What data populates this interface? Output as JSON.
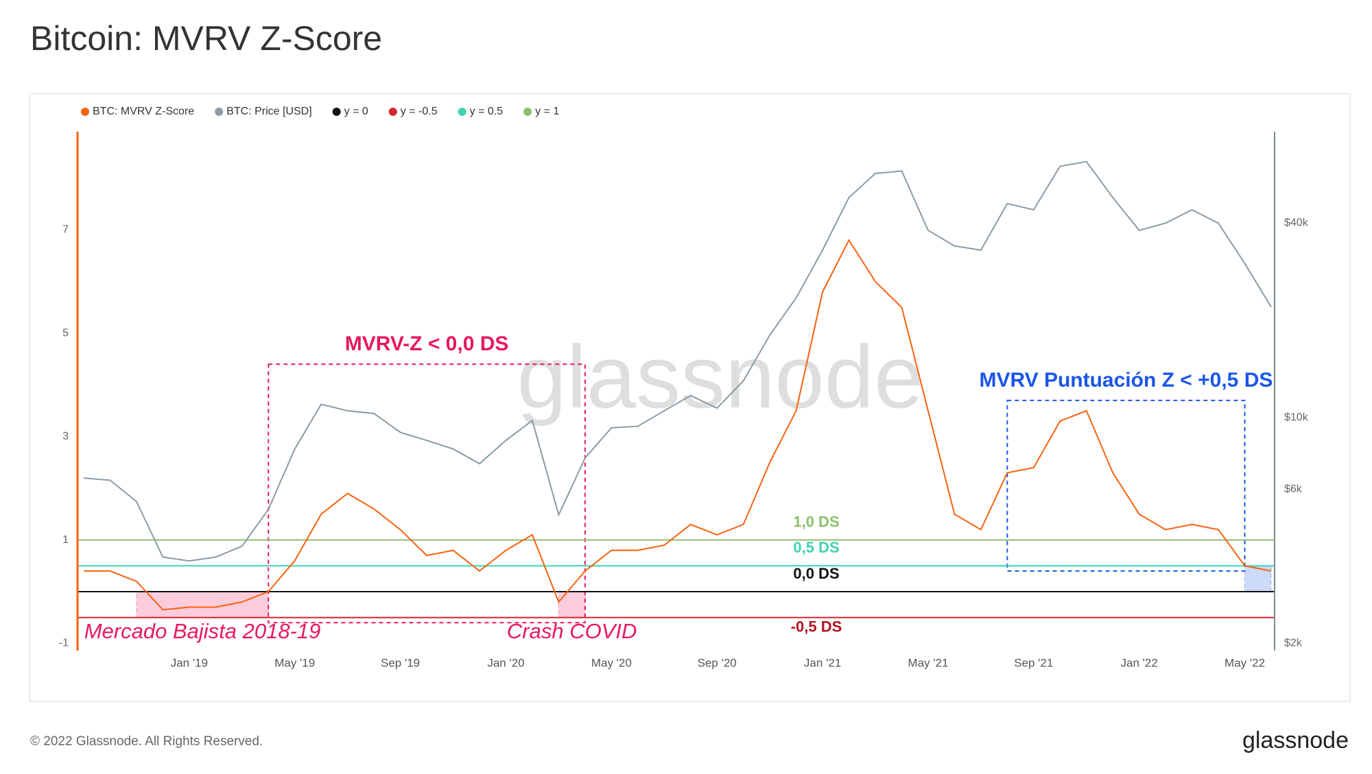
{
  "chart_data": {
    "type": "line",
    "title": "Bitcoin: MVRV Z-Score",
    "x": [
      "2018-09",
      "2018-10",
      "2018-11",
      "2018-12",
      "2019-01",
      "2019-02",
      "2019-03",
      "2019-04",
      "2019-05",
      "2019-06",
      "2019-07",
      "2019-08",
      "2019-09",
      "2019-10",
      "2019-11",
      "2019-12",
      "2020-01",
      "2020-02",
      "2020-03",
      "2020-04",
      "2020-05",
      "2020-06",
      "2020-07",
      "2020-08",
      "2020-09",
      "2020-10",
      "2020-11",
      "2020-12",
      "2021-01",
      "2021-02",
      "2021-03",
      "2021-04",
      "2021-05",
      "2021-06",
      "2021-07",
      "2021-08",
      "2021-09",
      "2021-10",
      "2021-11",
      "2021-12",
      "2022-01",
      "2022-02",
      "2022-03",
      "2022-04",
      "2022-05",
      "2022-06"
    ],
    "series": [
      {
        "name": "BTC: MVRV Z-Score",
        "color": "#f7620e",
        "values": [
          0.4,
          0.4,
          0.2,
          -0.35,
          -0.3,
          -0.3,
          -0.2,
          0.0,
          0.6,
          1.5,
          1.9,
          1.6,
          1.2,
          0.7,
          0.8,
          0.4,
          0.8,
          1.1,
          -0.2,
          0.4,
          0.8,
          0.8,
          0.9,
          1.3,
          1.1,
          1.3,
          2.5,
          3.5,
          5.8,
          6.8,
          6.0,
          5.5,
          3.5,
          1.5,
          1.2,
          2.3,
          2.4,
          3.3,
          3.5,
          2.3,
          1.5,
          1.2,
          1.3,
          1.2,
          0.5,
          0.4
        ]
      },
      {
        "name": "BTC: Price [USD]",
        "color": "#8a9ba3",
        "axis": "y2",
        "values": [
          6500,
          6400,
          5500,
          3700,
          3600,
          3700,
          4000,
          5200,
          8000,
          11000,
          10500,
          10300,
          9000,
          8500,
          8000,
          7200,
          8500,
          9800,
          5000,
          7500,
          9300,
          9400,
          10500,
          11700,
          10700,
          13000,
          18000,
          23500,
          33000,
          48000,
          57000,
          58000,
          38000,
          34000,
          33000,
          46000,
          44000,
          60000,
          62000,
          48000,
          38000,
          40000,
          44000,
          40000,
          30000,
          22000
        ]
      }
    ],
    "reference_lines": [
      {
        "name": "y = 0",
        "value": 0,
        "color": "#111111",
        "label": "0,0 DS"
      },
      {
        "name": "y = -0.5",
        "value": -0.5,
        "color": "#d6262e",
        "label": "-0,5 DS"
      },
      {
        "name": "y = 0.5",
        "value": 0.5,
        "color": "#3fd1b3",
        "label": "0,5 DS"
      },
      {
        "name": "y = 1",
        "value": 1,
        "color": "#8bc16b",
        "label": "1,0 DS"
      }
    ],
    "regions": [
      {
        "x": [
          "2019-04",
          "2020-04"
        ],
        "y": [
          -0.6,
          4.4
        ],
        "style": "dashed",
        "color": "#e8185f",
        "label": "MVRV-Z < 0,0 DS"
      },
      {
        "x": [
          "2018-11",
          "2019-04"
        ],
        "y": [
          -0.5,
          0
        ],
        "style": "filled",
        "color": "#e8185f",
        "label": "Mercado Bajista 2018-19"
      },
      {
        "x": [
          "2020-03",
          "2020-04"
        ],
        "y": [
          -0.5,
          0
        ],
        "style": "filled",
        "color": "#e8185f",
        "label": "Crash COVID"
      },
      {
        "x": [
          "2021-08",
          "2022-05"
        ],
        "y": [
          0.4,
          3.7
        ],
        "style": "dashed",
        "color": "#1a56e8",
        "label": "MVRV Puntuación Z < +0,5 DS"
      },
      {
        "x": [
          "2022-05",
          "2022-06"
        ],
        "y": [
          0,
          0.5
        ],
        "style": "filled",
        "color": "#1a56e8"
      }
    ],
    "xlim": [
      "2018-09",
      "2022-06"
    ],
    "xticks": [
      {
        "value": "2019-01",
        "label": "Jan '19"
      },
      {
        "value": "2019-05",
        "label": "May '19"
      },
      {
        "value": "2019-09",
        "label": "Sep '19"
      },
      {
        "value": "2020-01",
        "label": "Jan '20"
      },
      {
        "value": "2020-05",
        "label": "May '20"
      },
      {
        "value": "2020-09",
        "label": "Sep '20"
      },
      {
        "value": "2021-01",
        "label": "Jan '21"
      },
      {
        "value": "2021-05",
        "label": "May '21"
      },
      {
        "value": "2021-09",
        "label": "Sep '21"
      },
      {
        "value": "2022-01",
        "label": "Jan '22"
      },
      {
        "value": "2022-05",
        "label": "May '22"
      }
    ],
    "ylim": [
      -1.14,
      8.9
    ],
    "yticks": [
      -1,
      1,
      3,
      5,
      7
    ],
    "y2lim": [
      1900,
      76800
    ],
    "y2log": true,
    "y2ticks": [
      {
        "value": 2000,
        "label": "$2k"
      },
      {
        "value": 6000,
        "label": "$6k"
      },
      {
        "value": 10000,
        "label": "$10k"
      },
      {
        "value": 40000,
        "label": "$40k"
      }
    ],
    "watermark": "glassnode"
  },
  "footer": {
    "copyright": "© 2022 Glassnode. All Rights Reserved.",
    "brand": "glassnode"
  }
}
